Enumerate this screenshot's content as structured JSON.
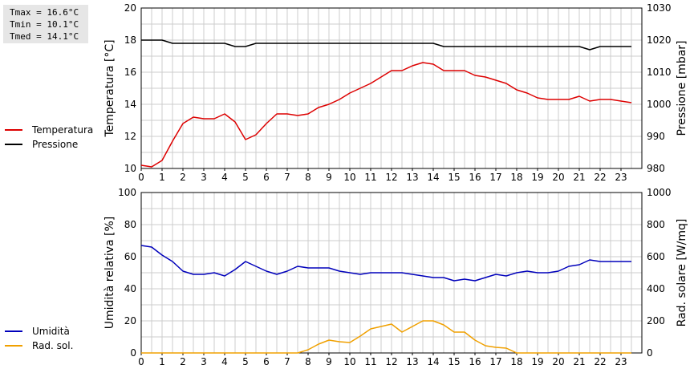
{
  "stats": {
    "tmax": "Tmax = 16.6°C",
    "tmin": "Tmin = 10.1°C",
    "tmed": "Tmed = 14.1°C"
  },
  "colors": {
    "temperatura": "#dd0000",
    "pressione": "#000000",
    "umidita": "#0000bb",
    "radsol": "#f0a000",
    "grid": "#cccccc"
  },
  "chart_data": [
    {
      "type": "line",
      "x_ticks": [
        "0",
        "1",
        "2",
        "3",
        "4",
        "5",
        "6",
        "7",
        "8",
        "9",
        "10",
        "11",
        "12",
        "13",
        "14",
        "15",
        "16",
        "17",
        "18",
        "19",
        "20",
        "21",
        "22",
        "23"
      ],
      "xlim": [
        0,
        24
      ],
      "ylabel_left": "Temperatura [°C]",
      "ylabel_right": "Pressione [mbar]",
      "ylim_left": [
        10,
        20
      ],
      "ylim_right": [
        980,
        1030
      ],
      "yticks_left": [
        "10",
        "12",
        "14",
        "16",
        "18",
        "20"
      ],
      "yticks_right": [
        "980",
        "990",
        "1000",
        "1010",
        "1020",
        "1030"
      ],
      "grid": true,
      "series": [
        {
          "name": "Temperatura",
          "axis": "left",
          "x": [
            0,
            0.5,
            1,
            1.5,
            2,
            2.5,
            3,
            3.5,
            4,
            4.5,
            5,
            5.5,
            6,
            6.5,
            7,
            7.5,
            8,
            8.5,
            9,
            9.5,
            10,
            10.5,
            11,
            11.5,
            12,
            12.5,
            13,
            13.5,
            14,
            14.5,
            15,
            15.5,
            16,
            16.5,
            17,
            17.5,
            18,
            18.5,
            19,
            19.5,
            20,
            20.5,
            21,
            21.5,
            22,
            22.5,
            23,
            23.5
          ],
          "values": [
            10.2,
            10.1,
            10.5,
            11.7,
            12.8,
            13.2,
            13.1,
            13.1,
            13.4,
            12.9,
            11.8,
            12.1,
            12.8,
            13.4,
            13.4,
            13.3,
            13.4,
            13.8,
            14.0,
            14.3,
            14.7,
            15.0,
            15.3,
            15.7,
            16.1,
            16.1,
            16.4,
            16.6,
            16.5,
            16.1,
            16.1,
            16.1,
            15.8,
            15.7,
            15.5,
            15.3,
            14.9,
            14.7,
            14.4,
            14.3,
            14.3,
            14.3,
            14.5,
            14.2,
            14.3,
            14.3,
            14.2,
            14.1
          ]
        },
        {
          "name": "Pressione",
          "axis": "right",
          "x": [
            0,
            1,
            1.5,
            2,
            3,
            4,
            4.5,
            5,
            5.5,
            6,
            7,
            8,
            9,
            10,
            11,
            12,
            13,
            14,
            14.5,
            15,
            16,
            17,
            18,
            19,
            20,
            21,
            21.5,
            22,
            23,
            23.5
          ],
          "values": [
            1020,
            1020,
            1019,
            1019,
            1019,
            1019,
            1018,
            1018,
            1019,
            1019,
            1019,
            1019,
            1019,
            1019,
            1019,
            1019,
            1019,
            1019,
            1018,
            1018,
            1018,
            1018,
            1018,
            1018,
            1018,
            1018,
            1017,
            1018,
            1018,
            1018
          ]
        }
      ]
    },
    {
      "type": "line",
      "x_ticks": [
        "0",
        "1",
        "2",
        "3",
        "4",
        "5",
        "6",
        "7",
        "8",
        "9",
        "10",
        "11",
        "12",
        "13",
        "14",
        "15",
        "16",
        "17",
        "18",
        "19",
        "20",
        "21",
        "22",
        "23"
      ],
      "xlim": [
        0,
        24
      ],
      "ylabel_left": "Umidità relativa [%]",
      "ylabel_right": "Rad. solare [W/mq]",
      "ylim_left": [
        0,
        100
      ],
      "ylim_right": [
        0,
        1000
      ],
      "yticks_left": [
        "0",
        "20",
        "40",
        "60",
        "80",
        "100"
      ],
      "yticks_right": [
        "0",
        "200",
        "400",
        "600",
        "800",
        "1000"
      ],
      "grid": true,
      "series": [
        {
          "name": "Umidità",
          "axis": "left",
          "x": [
            0,
            0.5,
            1,
            1.5,
            2,
            2.5,
            3,
            3.5,
            4,
            4.5,
            5,
            5.5,
            6,
            6.5,
            7,
            7.5,
            8,
            8.5,
            9,
            9.5,
            10,
            10.5,
            11,
            11.5,
            12,
            12.5,
            13,
            13.5,
            14,
            14.5,
            15,
            15.5,
            16,
            16.5,
            17,
            17.5,
            18,
            18.5,
            19,
            19.5,
            20,
            20.5,
            21,
            21.5,
            22,
            22.5,
            23,
            23.5
          ],
          "values": [
            67,
            66,
            61,
            57,
            51,
            49,
            49,
            50,
            48,
            52,
            57,
            54,
            51,
            49,
            51,
            54,
            53,
            53,
            53,
            51,
            50,
            49,
            50,
            50,
            50,
            50,
            49,
            48,
            47,
            47,
            45,
            46,
            45,
            47,
            49,
            48,
            50,
            51,
            50,
            50,
            51,
            54,
            55,
            58,
            57,
            57,
            57,
            57
          ]
        },
        {
          "name": "Rad. sol.",
          "axis": "right",
          "x": [
            0,
            1,
            2,
            3,
            4,
            5,
            6,
            7,
            7.5,
            8,
            8.5,
            9,
            9.5,
            10,
            10.5,
            11,
            11.5,
            12,
            12.5,
            13,
            13.5,
            14,
            14.5,
            15,
            15.5,
            16,
            16.5,
            17,
            17.5,
            18,
            19,
            20,
            21,
            22,
            23,
            23.5
          ],
          "values": [
            0,
            0,
            0,
            0,
            0,
            0,
            0,
            0,
            0,
            20,
            55,
            80,
            70,
            65,
            105,
            150,
            165,
            180,
            130,
            165,
            200,
            200,
            175,
            130,
            130,
            80,
            45,
            35,
            30,
            0,
            0,
            0,
            0,
            0,
            0,
            0
          ]
        }
      ]
    }
  ]
}
